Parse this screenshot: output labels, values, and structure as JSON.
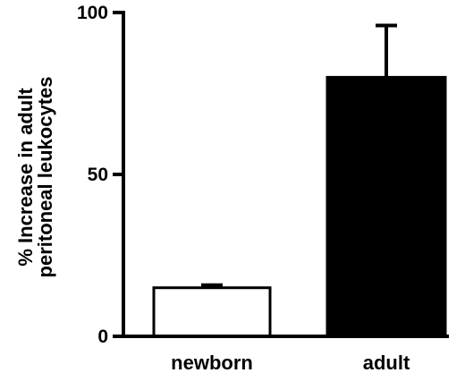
{
  "chart_data": {
    "type": "bar",
    "title": "",
    "xlabel": "",
    "ylabel_lines": [
      "% Increase in adult",
      "peritoneal leukocytes"
    ],
    "categories": [
      "newborn",
      "adult"
    ],
    "values": [
      15,
      80
    ],
    "errors": [
      0.8,
      16
    ],
    "bar_fills": [
      "#ffffff",
      "#000000"
    ],
    "ylim": [
      0,
      100
    ],
    "yticks": [
      0,
      50,
      100
    ],
    "ytick_labels": [
      "0",
      "50",
      "100"
    ],
    "grid": false,
    "legend": "none"
  },
  "colors": {
    "axis": "#000000",
    "bar_outline": "#000000",
    "background": "#ffffff"
  }
}
